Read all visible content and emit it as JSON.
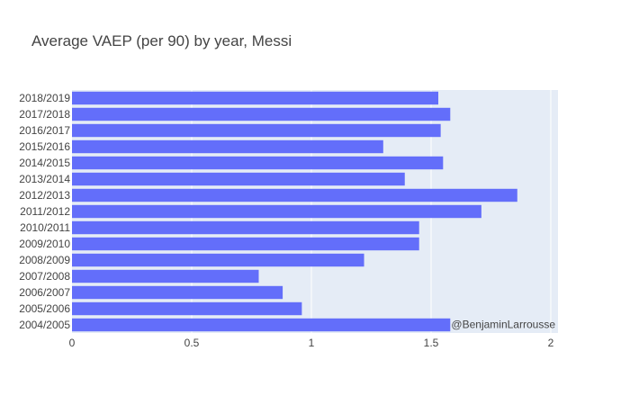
{
  "chart_data": {
    "type": "bar",
    "orientation": "horizontal",
    "title": "Average VAEP (per 90) by year, Messi",
    "xlabel": "",
    "ylabel": "",
    "categories": [
      "2004/2005",
      "2005/2006",
      "2006/2007",
      "2007/2008",
      "2008/2009",
      "2009/2010",
      "2010/2011",
      "2011/2012",
      "2012/2013",
      "2013/2014",
      "2014/2015",
      "2015/2016",
      "2016/2017",
      "2017/2018",
      "2018/2019"
    ],
    "values": [
      1.58,
      0.96,
      0.88,
      0.78,
      1.22,
      1.45,
      1.45,
      1.71,
      1.86,
      1.39,
      1.55,
      1.3,
      1.54,
      1.58,
      1.53
    ],
    "xlim": [
      0,
      2.03
    ],
    "xticks": [
      0,
      0.5,
      1,
      1.5,
      2
    ],
    "xtick_labels": [
      "0",
      "0.5",
      "1",
      "1.5",
      "2"
    ],
    "grid": true,
    "colors": {
      "bar": "#636efa",
      "plot_bg": "#e5ecf6",
      "grid": "#ffffff",
      "text": "#444444"
    },
    "annotation": "@BenjaminLarrousse"
  }
}
